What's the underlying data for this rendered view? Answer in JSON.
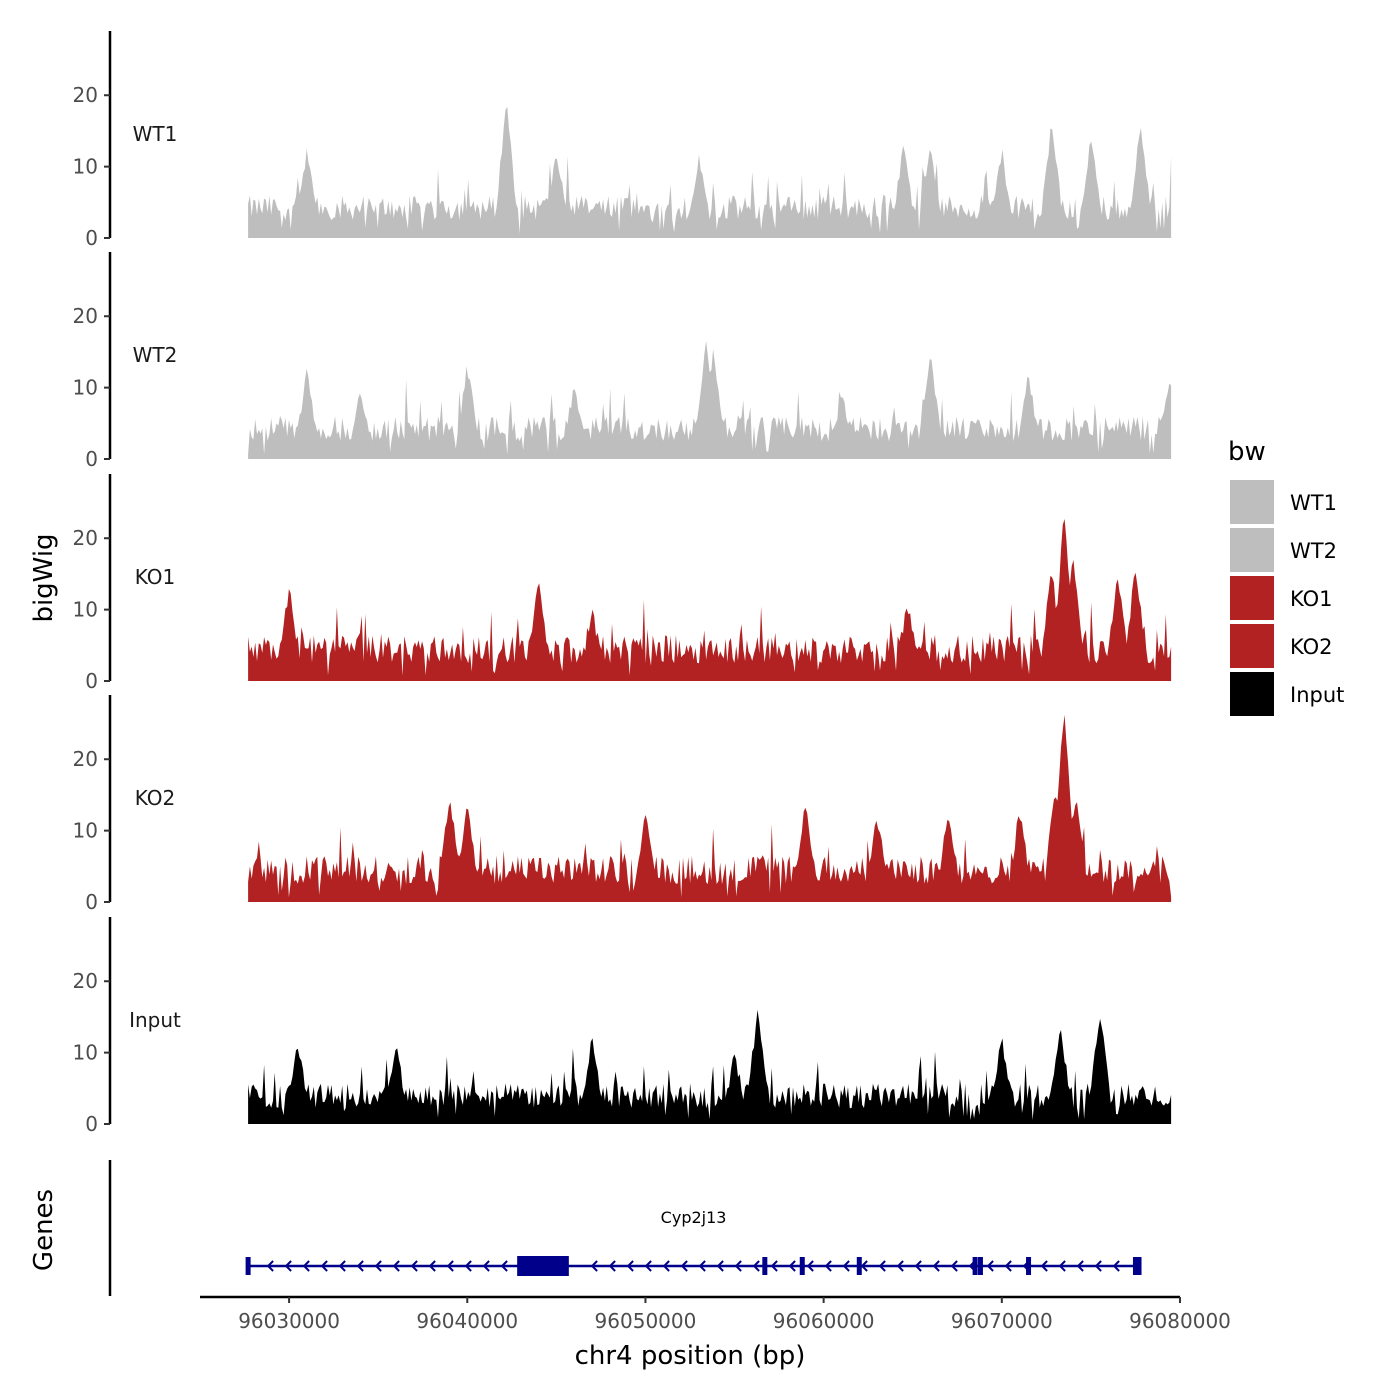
{
  "chart_data": {
    "type": "area",
    "ylabel": "bigWig",
    "xlabel": "chr4 position (bp)",
    "genes_label": "Genes",
    "xlim": [
      96025000,
      96080000
    ],
    "ylim": [
      0,
      29
    ],
    "region": [
      96027700,
      96079500
    ],
    "y_ticks": [
      0,
      10,
      20
    ],
    "x_ticks": [
      96030000,
      96040000,
      96050000,
      96060000,
      96070000,
      96080000
    ],
    "x_tick_labels": [
      "96030000",
      "96040000",
      "96050000",
      "96060000",
      "96070000",
      "96080000"
    ],
    "legend": {
      "title": "bw",
      "entries": [
        {
          "label": "WT1",
          "color": "#bebebe"
        },
        {
          "label": "WT2",
          "color": "#bebebe"
        },
        {
          "label": "KO1",
          "color": "#b22222"
        },
        {
          "label": "KO2",
          "color": "#b22222"
        },
        {
          "label": "Input",
          "color": "#000000"
        }
      ]
    },
    "series": [
      {
        "name": "WT1",
        "color": "#bebebe",
        "baseline": 4.5,
        "noise": 3.5,
        "peaks": [
          [
            96042200,
            18
          ],
          [
            96072800,
            15
          ],
          [
            96077800,
            15
          ],
          [
            96064500,
            12
          ],
          [
            96075000,
            13
          ],
          [
            96070000,
            11
          ],
          [
            96045000,
            11
          ],
          [
            96053000,
            10
          ],
          [
            96066000,
            12
          ],
          [
            96031000,
            11
          ]
        ]
      },
      {
        "name": "WT2",
        "color": "#bebebe",
        "baseline": 4.5,
        "noise": 3.5,
        "peaks": [
          [
            96053400,
            16
          ],
          [
            96053800,
            14
          ],
          [
            96066000,
            13
          ],
          [
            96071500,
            11
          ],
          [
            96079400,
            10
          ],
          [
            96034000,
            8
          ],
          [
            96046000,
            9
          ],
          [
            96061000,
            8
          ],
          [
            96040000,
            12
          ],
          [
            96031000,
            11
          ]
        ]
      },
      {
        "name": "KO1",
        "color": "#b22222",
        "baseline": 4.5,
        "noise": 4,
        "peaks": [
          [
            96073500,
            23
          ],
          [
            96072800,
            15
          ],
          [
            96074000,
            16
          ],
          [
            96076500,
            14
          ],
          [
            96077500,
            15
          ],
          [
            96044000,
            13
          ],
          [
            96064700,
            10
          ],
          [
            96030000,
            12
          ],
          [
            96047000,
            9
          ]
        ]
      },
      {
        "name": "KO2",
        "color": "#b22222",
        "baseline": 4.5,
        "noise": 4,
        "peaks": [
          [
            96073500,
            27
          ],
          [
            96073000,
            15
          ],
          [
            96074200,
            14
          ],
          [
            96039000,
            14
          ],
          [
            96040000,
            13
          ],
          [
            96050000,
            11
          ],
          [
            96059000,
            13
          ],
          [
            96063000,
            11
          ],
          [
            96067000,
            12
          ],
          [
            96071000,
            12
          ]
        ]
      },
      {
        "name": "Input",
        "color": "#000000",
        "baseline": 4,
        "noise": 3.5,
        "peaks": [
          [
            96056300,
            15
          ],
          [
            96075500,
            15
          ],
          [
            96073300,
            12
          ],
          [
            96070000,
            11
          ],
          [
            96047000,
            11
          ],
          [
            96055000,
            9
          ],
          [
            96030500,
            10
          ],
          [
            96036000,
            10
          ]
        ]
      }
    ],
    "gene": {
      "name": "Cyp2j13",
      "color": "#00008b",
      "strand": "-",
      "start": 96027700,
      "end": 96077700,
      "thick_block": [
        96042800,
        96045700
      ],
      "exons": [
        96027700,
        96056700,
        96058800,
        96062000,
        96068500,
        96068800,
        96071500,
        96077500,
        96077700
      ]
    }
  }
}
